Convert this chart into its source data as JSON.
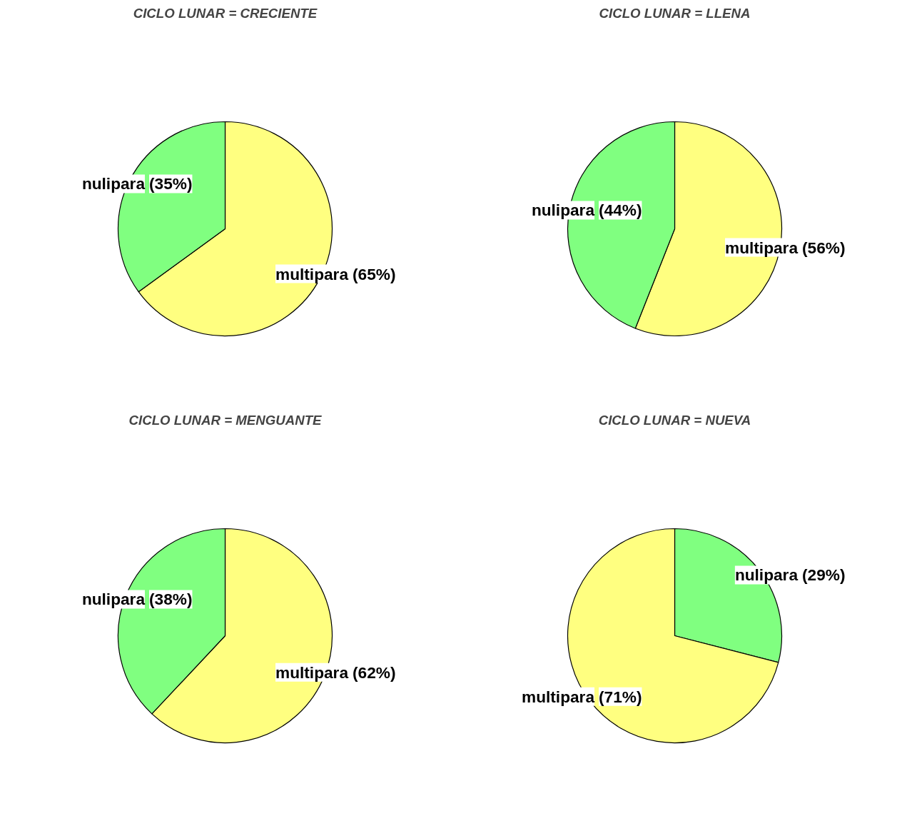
{
  "chart_data": [
    {
      "type": "pie",
      "title": "CICLO LUNAR = CRECIENTE",
      "categories": [
        "multipara",
        "nulipara"
      ],
      "values": [
        65,
        35
      ],
      "colors": [
        "#ffff80",
        "#80ff80"
      ],
      "value_labels": [
        "(65%)",
        "(35%)"
      ]
    },
    {
      "type": "pie",
      "title": "CICLO LUNAR = LLENA",
      "categories": [
        "multipara",
        "nulipara"
      ],
      "values": [
        56,
        44
      ],
      "colors": [
        "#ffff80",
        "#80ff80"
      ],
      "value_labels": [
        "(56%)",
        "(44%)"
      ]
    },
    {
      "type": "pie",
      "title": "CICLO LUNAR = MENGUANTE",
      "categories": [
        "multipara",
        "nulipara"
      ],
      "values": [
        62,
        38
      ],
      "colors": [
        "#ffff80",
        "#80ff80"
      ],
      "value_labels": [
        "(62%)",
        "(38%)"
      ]
    },
    {
      "type": "pie",
      "title": "CICLO LUNAR = NUEVA",
      "categories": [
        "nulipara",
        "multipara"
      ],
      "values": [
        29,
        71
      ],
      "colors": [
        "#80ff80",
        "#ffff80"
      ],
      "value_labels": [
        "(29%)",
        "(71%)"
      ]
    }
  ]
}
